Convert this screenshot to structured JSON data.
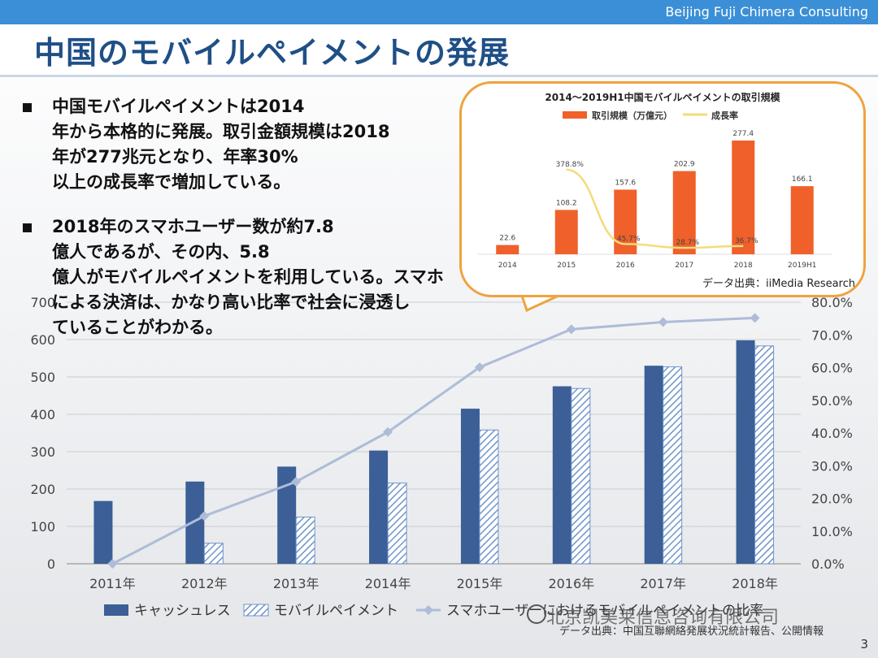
{
  "header": {
    "company": "Beijing Fuji Chimera Consulting"
  },
  "title": "中国のモバイルペイメントの発展",
  "bullets": [
    {
      "lines": [
        "中国モバイルペイメントは2014",
        "年から本格的に発展。取引金額規模は2018",
        "年が277兆元となり、年率30%",
        "以上の成長率で増加している。"
      ]
    },
    {
      "lines": [
        "2018年のスマホユーザー数が約7.8",
        "億人であるが、その内、5.8",
        "億人がモバイルペイメントを利用している。スマホ",
        "による決済は、かなり高い比率で社会に浸透し",
        "ていることがわかる。"
      ]
    }
  ],
  "inset": {
    "title": "2014～2019H1中国モバイルペイメントの取引規模",
    "legend": [
      "取引規模（万億元）",
      "成長率"
    ],
    "source": "データ出典：iiMedia Research",
    "colors": {
      "bar": "#f0602a",
      "line": "#f2dc7b",
      "border": "#f0a23e"
    }
  },
  "chart_data": [
    {
      "type": "bar",
      "categories": [
        "2011年",
        "2012年",
        "2013年",
        "2014年",
        "2015年",
        "2016年",
        "2017年",
        "2018年"
      ],
      "series": [
        {
          "name": "キャッシュレス",
          "values": [
            168,
            220,
            260,
            303,
            415,
            475,
            530,
            598
          ],
          "color": "#3b5f96"
        },
        {
          "name": "モバイルペイメント",
          "values": [
            0,
            55,
            125,
            216,
            358,
            469,
            527,
            583
          ],
          "color": "#7fa1cf",
          "pattern": "hatch"
        },
        {
          "name": "スマホユーザーにおけるモバイルペイメントの比率",
          "values": [
            0.0,
            14.6,
            25.1,
            40.3,
            60.1,
            71.7,
            73.9,
            75.2
          ],
          "axis": "right",
          "color": "#aebcd7",
          "type": "line"
        }
      ],
      "left_axis": {
        "ticks": [
          "0",
          "100",
          "200",
          "300",
          "400",
          "500",
          "600",
          "700"
        ],
        "range": [
          0,
          700
        ]
      },
      "right_axis": {
        "ticks": [
          "0.0%",
          "10.0%",
          "20.0%",
          "30.0%",
          "40.0%",
          "50.0%",
          "60.0%",
          "70.0%",
          "80.0%"
        ],
        "range": [
          0,
          80
        ]
      },
      "source": "データ出典：中国互聯網絡発展状況統計報告、公開情報"
    },
    {
      "type": "bar",
      "title": "2014～2019H1中国モバイルペイメントの取引規模",
      "categories": [
        "2014",
        "2015",
        "2016",
        "2017",
        "2018",
        "2019H1"
      ],
      "series": [
        {
          "name": "取引規模（万億元）",
          "values": [
            22.6,
            108.2,
            157.6,
            202.9,
            277.4,
            166.1
          ]
        },
        {
          "name": "成長率",
          "values": [
            null,
            378.8,
            45.7,
            28.7,
            36.7,
            null
          ],
          "type": "line",
          "value_labels": [
            "",
            "378.8%",
            "45.7%",
            "28.7%",
            "36.7%",
            ""
          ]
        }
      ]
    }
  ],
  "watermark": "北京凯美莱信息咨询有限公司",
  "page_number": "3"
}
